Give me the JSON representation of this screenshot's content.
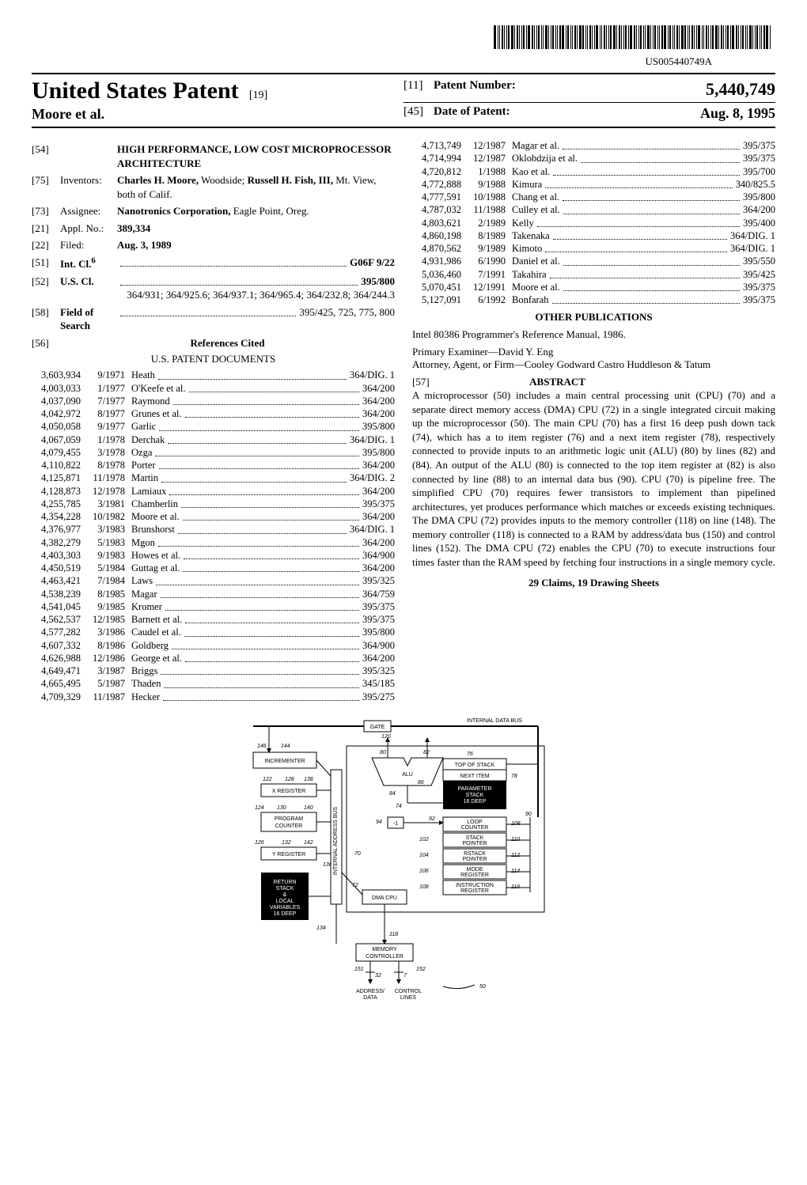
{
  "barcode_text": "US005440749A",
  "header": {
    "main_title": "United States Patent",
    "main_tag": "[19]",
    "authors": "Moore et al.",
    "patent_number_tag": "[11]",
    "patent_number_label": "Patent Number:",
    "patent_number": "5,440,749",
    "date_tag": "[45]",
    "date_label": "Date of Patent:",
    "date": "Aug. 8, 1995"
  },
  "biblio": [
    {
      "tag": "[54]",
      "label": "",
      "value": "<b>HIGH PERFORMANCE, LOW COST MICROPROCESSOR ARCHITECTURE</b>"
    },
    {
      "tag": "[75]",
      "label": "Inventors:",
      "value": "<b>Charles H. Moore,</b> Woodside; <b>Russell H. Fish, III,</b> Mt. View, both of Calif."
    },
    {
      "tag": "[73]",
      "label": "Assignee:",
      "value": "<b>Nanotronics Corporation,</b> Eagle Point, Oreg."
    },
    {
      "tag": "[21]",
      "label": "Appl. No.:",
      "value": "<b>389,334</b>"
    },
    {
      "tag": "[22]",
      "label": "Filed:",
      "value": "<b>Aug. 3, 1989</b>"
    },
    {
      "tag": "[51]",
      "label": "<b>Int. Cl.<sup>6</sup></b>",
      "dots": true,
      "value": "<b>G06F 9/22</b>"
    },
    {
      "tag": "[52]",
      "label": "<b>U.S. Cl.</b>",
      "dots": true,
      "value": "<b>395/800;</b> 364/931; 364/925.6; 364/937.1; 364/965.4; 364/232.8; 364/244.3",
      "wrap": true
    },
    {
      "tag": "[58]",
      "label": "<b>Field of Search</b>",
      "dots": true,
      "value": "395/425, 725, 775, 800"
    }
  ],
  "refs_title_tag": "[56]",
  "refs_title": "References Cited",
  "refs_sub": "U.S. PATENT DOCUMENTS",
  "refs_left": [
    {
      "n": "3,603,934",
      "d": "9/1971",
      "name": "Heath",
      "cls": "364/DIG. 1"
    },
    {
      "n": "4,003,033",
      "d": "1/1977",
      "name": "O'Keefe et al.",
      "cls": "364/200"
    },
    {
      "n": "4,037,090",
      "d": "7/1977",
      "name": "Raymond",
      "cls": "364/200"
    },
    {
      "n": "4,042,972",
      "d": "8/1977",
      "name": "Grunes et al.",
      "cls": "364/200"
    },
    {
      "n": "4,050,058",
      "d": "9/1977",
      "name": "Garlic",
      "cls": "395/800"
    },
    {
      "n": "4,067,059",
      "d": "1/1978",
      "name": "Derchak",
      "cls": "364/DIG. 1"
    },
    {
      "n": "4,079,455",
      "d": "3/1978",
      "name": "Ozga",
      "cls": "395/800"
    },
    {
      "n": "4,110,822",
      "d": "8/1978",
      "name": "Porter",
      "cls": "364/200"
    },
    {
      "n": "4,125,871",
      "d": "11/1978",
      "name": "Martin",
      "cls": "364/DIG. 2"
    },
    {
      "n": "4,128,873",
      "d": "12/1978",
      "name": "Lamiaux",
      "cls": "364/200"
    },
    {
      "n": "4,255,785",
      "d": "3/1981",
      "name": "Chamberlin",
      "cls": "395/375"
    },
    {
      "n": "4,354,228",
      "d": "10/1982",
      "name": "Moore et al.",
      "cls": "364/200"
    },
    {
      "n": "4,376,977",
      "d": "3/1983",
      "name": "Brunshorst",
      "cls": "364/DIG. 1"
    },
    {
      "n": "4,382,279",
      "d": "5/1983",
      "name": "Mgon",
      "cls": "364/200"
    },
    {
      "n": "4,403,303",
      "d": "9/1983",
      "name": "Howes et al.",
      "cls": "364/900"
    },
    {
      "n": "4,450,519",
      "d": "5/1984",
      "name": "Guttag et al.",
      "cls": "364/200"
    },
    {
      "n": "4,463,421",
      "d": "7/1984",
      "name": "Laws",
      "cls": "395/325"
    },
    {
      "n": "4,538,239",
      "d": "8/1985",
      "name": "Magar",
      "cls": "364/759"
    },
    {
      "n": "4,541,045",
      "d": "9/1985",
      "name": "Kromer",
      "cls": "395/375"
    },
    {
      "n": "4,562,537",
      "d": "12/1985",
      "name": "Barnett et al.",
      "cls": "395/375"
    },
    {
      "n": "4,577,282",
      "d": "3/1986",
      "name": "Caudel et al.",
      "cls": "395/800"
    },
    {
      "n": "4,607,332",
      "d": "8/1986",
      "name": "Goldberg",
      "cls": "364/900"
    },
    {
      "n": "4,626,988",
      "d": "12/1986",
      "name": "George et al.",
      "cls": "364/200"
    },
    {
      "n": "4,649,471",
      "d": "3/1987",
      "name": "Briggs",
      "cls": "395/325"
    },
    {
      "n": "4,665,495",
      "d": "5/1987",
      "name": "Thaden",
      "cls": "345/185"
    },
    {
      "n": "4,709,329",
      "d": "11/1987",
      "name": "Hecker",
      "cls": "395/275"
    }
  ],
  "refs_right": [
    {
      "n": "4,713,749",
      "d": "12/1987",
      "name": "Magar et al.",
      "cls": "395/375"
    },
    {
      "n": "4,714,994",
      "d": "12/1987",
      "name": "Oklobdzija et al.",
      "cls": "395/375"
    },
    {
      "n": "4,720,812",
      "d": "1/1988",
      "name": "Kao et al.",
      "cls": "395/700"
    },
    {
      "n": "4,772,888",
      "d": "9/1988",
      "name": "Kimura",
      "cls": "340/825.5"
    },
    {
      "n": "4,777,591",
      "d": "10/1988",
      "name": "Chang et al.",
      "cls": "395/800"
    },
    {
      "n": "4,787,032",
      "d": "11/1988",
      "name": "Culley et al.",
      "cls": "364/200"
    },
    {
      "n": "4,803,621",
      "d": "2/1989",
      "name": "Kelly",
      "cls": "395/400"
    },
    {
      "n": "4,860,198",
      "d": "8/1989",
      "name": "Takenaka",
      "cls": "364/DIG. 1"
    },
    {
      "n": "4,870,562",
      "d": "9/1989",
      "name": "Kimoto",
      "cls": "364/DIG. 1"
    },
    {
      "n": "4,931,986",
      "d": "6/1990",
      "name": "Daniel et al.",
      "cls": "395/550"
    },
    {
      "n": "5,036,460",
      "d": "7/1991",
      "name": "Takahira",
      "cls": "395/425"
    },
    {
      "n": "5,070,451",
      "d": "12/1991",
      "name": "Moore et al.",
      "cls": "395/375"
    },
    {
      "n": "5,127,091",
      "d": "6/1992",
      "name": "Bonfarah",
      "cls": "395/375"
    }
  ],
  "other_pub_title": "OTHER PUBLICATIONS",
  "other_pub_text": "Intel 80386 Programmer's Reference Manual, 1986.",
  "examiner_label": "Primary Examiner",
  "examiner_name": "—David Y. Eng",
  "firm_label": "Attorney, Agent, or Firm",
  "firm_name": "—Cooley Godward Castro Huddleson & Tatum",
  "abstract_tag": "[57]",
  "abstract_title": "ABSTRACT",
  "abstract_body": "A microprocessor (50) includes a main central processing unit (CPU) (70) and a separate direct memory access (DMA) CPU (72) in a single integrated circuit making up the microprocessor (50). The main CPU (70) has a first 16 deep push down tack (74), which has a to item register (76) and a next item register (78), respectively connected to provide inputs to an arithmetic logic unit (ALU) (80) by lines (82) and (84). An output of the ALU (80) is connected to the top item register at (82) is also connected by line (88) to an internal data bus (90). CPU (70) is pipeline free. The simplified CPU (70) requires fewer transistors to implement than pipelined architectures, yet produces performance which matches or exceeds existing techniques. The DMA CPU (72) provides inputs to the memory controller (118) on line (148). The memory controller (118) is connected to a RAM by address/data bus (150) and control lines (152). The DMA CPU (72) enables the CPU (70) to execute instructions four times faster than the RAM speed by fetching four instructions in a single memory cycle.",
  "claims": "29 Claims, 19 Drawing Sheets",
  "figure": {
    "gate": "GATE",
    "bus": "INTERNAL DATA BUS",
    "incrementer": "INCREMENTER",
    "xreg": "X REGISTER",
    "pc": "PROGRAM\nCOUNTER",
    "yreg": "Y REGISTER",
    "ret": "RETURN\nSTACK\n&\nLOCAL\nVARIABLES\n16 DEEP",
    "alu": "ALU",
    "tos": "TOP OF STACK",
    "next": "NEXT ITEM",
    "param": "PARAMETER\nSTACK\n16 DEEP",
    "loop": "LOOP\nCOUNTER",
    "sp": "STACK\nPOINTER",
    "rsp": "RSTACK\nPOINTER",
    "mode": "MODE\nREGISTER",
    "inst": "INSTRUCTION\nREGISTER",
    "dma": "DMA CPU",
    "mem": "MEMORY\nCONTROLLER",
    "addr": "ADDRESS/\nDATA",
    "ctrl": "CONTROL\nLINES",
    "vbus": "INTERNAL ADDRESS BUS",
    "nums": {
      "n146": "146",
      "n144": "144",
      "n122": "122",
      "n128": "128",
      "n138": "138",
      "n124": "124",
      "n130": "130",
      "n140": "140",
      "n126": "126",
      "n132": "132",
      "n142": "142",
      "n136": "136",
      "n134": "134",
      "n120": "120",
      "n80": "80",
      "n82": "82",
      "n76": "76",
      "n86": "86",
      "n78": "78",
      "n84": "84",
      "n74": "74",
      "n90": "90",
      "n94": "94",
      "n92": "92",
      "n108": "108",
      "n102": "102",
      "n110": "110",
      "n104": "104",
      "n112": "112",
      "n106": "106",
      "n114": "114",
      "n116": "116",
      "n72": "72",
      "n70": "70",
      "n118": "118",
      "n151": "151",
      "n32": "32",
      "n7": "7",
      "n152": "152",
      "n50": "50",
      "nm1": "-1"
    }
  }
}
